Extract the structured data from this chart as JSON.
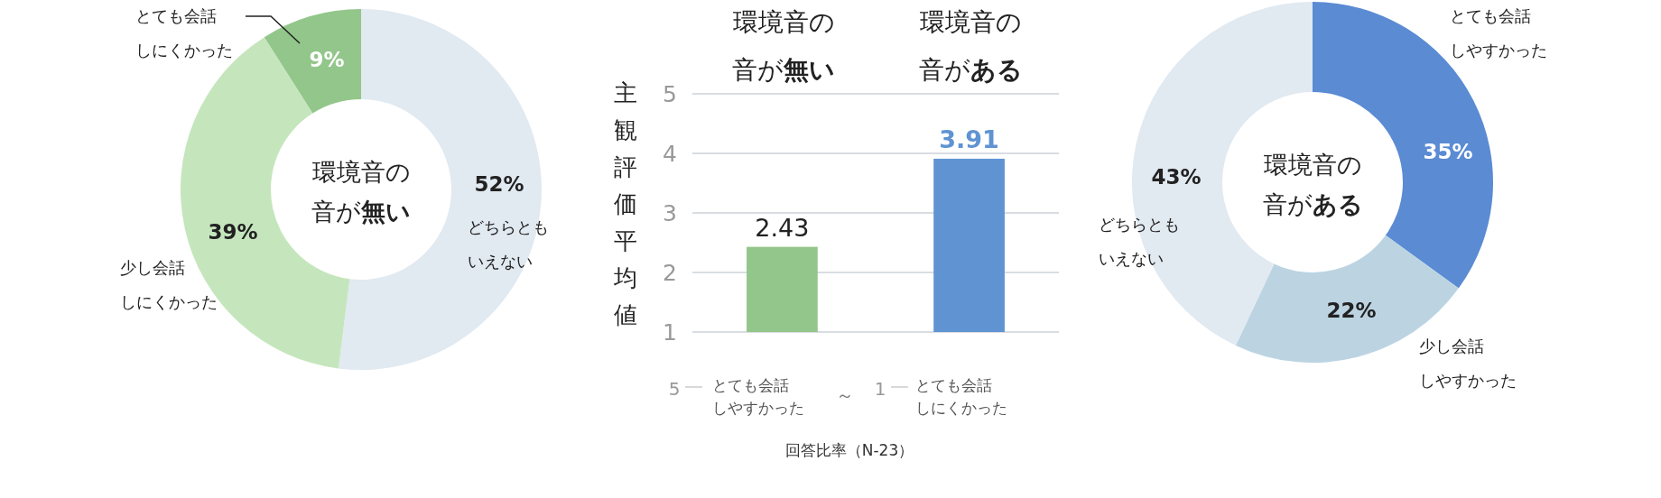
{
  "chart_data": [
    {
      "type": "donut",
      "title": "環境音の音が無い",
      "categories": [
        "どちらともいえない",
        "少し会話しにくかった",
        "とても会話しにくかった"
      ],
      "values": [
        52,
        39,
        9
      ],
      "colors": [
        "#e1e9f1",
        "#c5e6bd",
        "#93c68a"
      ],
      "value_labels": [
        "52%",
        "39%",
        "9%"
      ]
    },
    {
      "type": "bar",
      "categories": [
        "環境音の音が無い",
        "環境音の音がある"
      ],
      "values": [
        2.43,
        3.91
      ],
      "colors": [
        "#93c68a",
        "#5f93d2"
      ],
      "ylabel": "主観評価平均値",
      "ylim": [
        1,
        5
      ],
      "yticks": [
        1,
        2,
        3,
        4,
        5
      ],
      "grid": "y",
      "data_labels": true,
      "annotations": [
        "5",
        "とても会話しやすかった",
        "～",
        "1",
        "とても会話しにくかった",
        "回答比率（N-23）"
      ]
    },
    {
      "type": "donut",
      "title": "環境音の音がある",
      "categories": [
        "とても会話しやすかった",
        "少し会話しやすかった",
        "どちらともいえない"
      ],
      "values": [
        35,
        22,
        43
      ],
      "colors": [
        "#5a8bd3",
        "#bcd4e2",
        "#e1e9f1"
      ],
      "value_labels": [
        "35%",
        "22%",
        "43%"
      ]
    }
  ]
}
